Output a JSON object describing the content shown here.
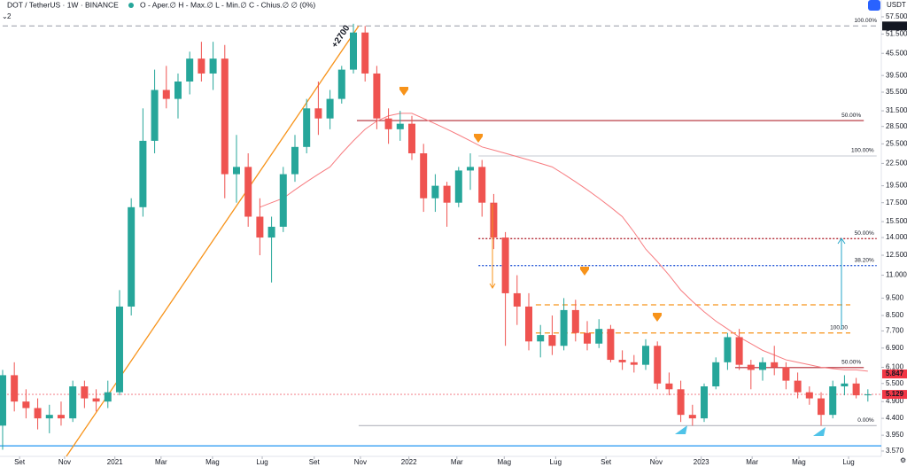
{
  "header": {
    "symbol": "DOT / TetherUS · 1W · BINANCE",
    "ohlc": "O - Aper.∅ H - Max.∅ L - Min.∅ C - Chius.∅ ∅ (0%)",
    "indicators": "2",
    "currency": "USDT"
  },
  "chart_data": {
    "type": "candlestick",
    "log_scale": true,
    "grid": false,
    "up_color": "#26a69a",
    "down_color": "#ef5350",
    "xlim": [
      -0.45,
      150.3
    ],
    "ylim": [
      3.45,
      60.5
    ],
    "xticks": [
      {
        "value": 2.9,
        "label": "Set"
      },
      {
        "value": 10.6,
        "label": "Nov"
      },
      {
        "value": 19.2,
        "label": "2021"
      },
      {
        "value": 27.1,
        "label": "Mar"
      },
      {
        "value": 35.9,
        "label": "Mag"
      },
      {
        "value": 44.4,
        "label": "Lug"
      },
      {
        "value": 53.3,
        "label": "Set"
      },
      {
        "value": 61.2,
        "label": "Nov"
      },
      {
        "value": 69.5,
        "label": "2022"
      },
      {
        "value": 77.7,
        "label": "Mar"
      },
      {
        "value": 85.8,
        "label": "Mag"
      },
      {
        "value": 94.6,
        "label": "Lug"
      },
      {
        "value": 103.2,
        "label": "Set"
      },
      {
        "value": 111.8,
        "label": "Nov"
      },
      {
        "value": 119.5,
        "label": "2023"
      },
      {
        "value": 128.2,
        "label": "Mar"
      },
      {
        "value": 136.2,
        "label": "Mag"
      },
      {
        "value": 144.7,
        "label": "Lug"
      }
    ],
    "yticks": [
      {
        "value": 57.5,
        "label": "57.500"
      },
      {
        "value": 51.5,
        "label": "51.500"
      },
      {
        "value": 45.5,
        "label": "45.500"
      },
      {
        "value": 39.5,
        "label": "39.500"
      },
      {
        "value": 35.5,
        "label": "35.500"
      },
      {
        "value": 31.5,
        "label": "31.500"
      },
      {
        "value": 28.5,
        "label": "28.500"
      },
      {
        "value": 25.5,
        "label": "25.500"
      },
      {
        "value": 22.5,
        "label": "22.500"
      },
      {
        "value": 19.5,
        "label": "19.500"
      },
      {
        "value": 17.5,
        "label": "17.500"
      },
      {
        "value": 15.5,
        "label": "15.500"
      },
      {
        "value": 14,
        "label": "14.000"
      },
      {
        "value": 12.5,
        "label": "12.500"
      },
      {
        "value": 11,
        "label": "11.000"
      },
      {
        "value": 9.5,
        "label": "9.500"
      },
      {
        "value": 8.5,
        "label": "8.500"
      },
      {
        "value": 7.7,
        "label": "7.700"
      },
      {
        "value": 6.9,
        "label": "6.900"
      },
      {
        "value": 6.1,
        "label": "6.100"
      },
      {
        "value": 5.5,
        "label": "5.500"
      },
      {
        "value": 4.9,
        "label": "4.900"
      },
      {
        "value": 4.4,
        "label": "4.400"
      },
      {
        "value": 3.95,
        "label": "3.950"
      },
      {
        "value": 3.57,
        "label": "3.570"
      }
    ],
    "x": [
      0,
      2,
      4,
      6,
      8,
      10,
      12,
      14,
      16,
      18,
      20,
      22,
      24,
      26,
      28,
      30,
      32,
      34,
      36,
      38,
      40,
      42,
      44,
      46,
      48,
      50,
      52,
      54,
      56,
      58,
      60,
      62,
      64,
      66,
      68,
      70,
      72,
      74,
      76,
      78,
      80,
      82,
      84,
      86,
      88,
      90,
      92,
      94,
      96,
      98,
      100,
      102,
      104,
      106,
      108,
      110,
      112,
      114,
      116,
      118,
      120,
      122,
      124,
      126,
      128,
      130,
      132,
      134,
      136,
      138,
      140,
      142,
      144,
      146,
      148
    ],
    "open": [
      4.2,
      5.8,
      4.9,
      4.7,
      4.4,
      4.5,
      4.4,
      5.4,
      5.0,
      4.9,
      5.2,
      9.0,
      17,
      26,
      36,
      34,
      38,
      44,
      40,
      44,
      21,
      22,
      16,
      14,
      15,
      21,
      25,
      32,
      30,
      34,
      41,
      52,
      40,
      30,
      28,
      29,
      24,
      18,
      19.5,
      17.5,
      21.5,
      22,
      17.5,
      14,
      9.8,
      9.0,
      7.2,
      7.5,
      7.0,
      8.8,
      7.6,
      7.1,
      7.8,
      6.4,
      6.3,
      6.2,
      7.0,
      5.5,
      5.3,
      4.5,
      4.4,
      5.4,
      6.3,
      7.4,
      6.2,
      6.0,
      6.3,
      6.1,
      5.6,
      5.2,
      5.0,
      4.5,
      5.4,
      5.5,
      5.1
    ],
    "high": [
      6.0,
      6.3,
      5.3,
      5.0,
      4.8,
      4.9,
      5.6,
      5.6,
      5.3,
      5.6,
      10,
      18,
      32,
      41,
      42,
      40,
      46,
      49,
      49,
      48,
      27,
      24,
      18,
      16,
      22,
      27,
      34,
      38,
      36,
      42,
      55,
      54.219,
      42,
      32,
      31.5,
      30.5,
      25.5,
      21,
      20,
      22,
      24,
      23,
      18.5,
      14.5,
      11,
      9.8,
      8.0,
      8.5,
      9.5,
      9.4,
      8.2,
      8.3,
      8.0,
      6.8,
      6.6,
      7.3,
      7.2,
      5.9,
      5.6,
      4.8,
      5.5,
      6.5,
      7.6,
      7.8,
      6.4,
      6.5,
      7.0,
      6.3,
      5.9,
      5.4,
      5.2,
      5.6,
      5.8,
      5.7,
      5.3
    ],
    "low": [
      3.6,
      4.6,
      4.4,
      4.1,
      4.0,
      4.2,
      4.3,
      4.7,
      4.6,
      4.7,
      5.1,
      8.5,
      16,
      24,
      32,
      30,
      35,
      38,
      36,
      18,
      17.5,
      15,
      12.5,
      10.5,
      14.5,
      20,
      24,
      27,
      28,
      33,
      40,
      38,
      28,
      25.5,
      26,
      23,
      16.5,
      16.5,
      15,
      17,
      19,
      16,
      13,
      7.0,
      8.0,
      6.8,
      6.5,
      6.6,
      6.8,
      7.2,
      6.8,
      6.9,
      6.3,
      6.0,
      5.9,
      6.0,
      5.3,
      5.1,
      4.3,
      4.2,
      4.3,
      5.3,
      6.0,
      6.0,
      5.3,
      5.6,
      5.8,
      5.3,
      5.0,
      4.8,
      4.2,
      4.4,
      5.1,
      5.0,
      4.9
    ],
    "close": [
      5.8,
      4.9,
      4.7,
      4.4,
      4.5,
      4.4,
      5.4,
      5.0,
      4.9,
      5.2,
      9.0,
      17,
      26,
      36,
      34,
      38,
      44,
      40,
      44,
      21,
      22,
      16,
      14,
      15,
      21,
      25,
      32,
      30,
      34,
      41,
      52,
      40,
      30,
      28,
      29,
      24,
      18,
      19.5,
      17.5,
      21.5,
      22,
      17.5,
      14,
      9.8,
      9.0,
      7.2,
      7.5,
      7.0,
      8.8,
      7.6,
      7.1,
      7.8,
      6.4,
      6.3,
      6.2,
      7.0,
      5.5,
      5.3,
      4.5,
      4.4,
      5.4,
      6.3,
      7.4,
      6.2,
      6.0,
      6.3,
      6.1,
      5.6,
      5.2,
      5.0,
      4.5,
      5.4,
      5.5,
      5.1,
      5.129
    ],
    "ma": {
      "color": "#f77c80",
      "values": [
        null,
        null,
        null,
        null,
        null,
        null,
        null,
        null,
        null,
        null,
        null,
        null,
        null,
        null,
        null,
        null,
        null,
        null,
        null,
        null,
        null,
        null,
        17,
        17.5,
        18,
        19,
        20,
        21,
        22,
        24,
        26,
        28,
        29.5,
        30.5,
        31,
        31,
        30,
        29,
        28,
        27,
        26,
        25,
        24.5,
        24,
        23.5,
        23,
        22.5,
        22,
        21,
        20,
        19,
        18,
        17,
        16,
        14.5,
        13,
        12,
        11,
        10,
        9.3,
        8.7,
        8.2,
        7.8,
        7.4,
        7.1,
        6.8,
        6.6,
        6.4,
        6.3,
        6.2,
        6.1,
        6.05,
        6.0,
        6.0,
        5.95
      ]
    },
    "levels": [
      {
        "value": 54.219,
        "x": [
          0,
          150
        ],
        "color": "#b2b5be",
        "style": "dashed",
        "label": "100.00%"
      },
      {
        "value": 29.6,
        "x": [
          60.6,
          147.3
        ],
        "color": "#b22833",
        "style": "solid",
        "label": "50.00%"
      },
      {
        "value": 23.6,
        "x": [
          81.4,
          149.5
        ],
        "color": "#d1d4dc",
        "style": "solid",
        "label": "100.00%"
      },
      {
        "value": 13.9,
        "x": [
          81.4,
          149.5
        ],
        "color": "#b22833",
        "style": "dotted",
        "label": "50.00%"
      },
      {
        "value": 11.7,
        "x": [
          81.4,
          149.5
        ],
        "color": "#2a5bd7",
        "style": "dotted",
        "label": "38.20%"
      },
      {
        "value": 9.1,
        "x": [
          91.2,
          145
        ],
        "color": "#f7931a",
        "style": "dashed"
      },
      {
        "value": 7.6,
        "x": [
          91.2,
          145
        ],
        "color": "#f7931a",
        "style": "dashed",
        "label": "100.00"
      },
      {
        "value": 6.09,
        "x": [
          125.3,
          147.3
        ],
        "color": "#b22833",
        "style": "solid",
        "label": "50.00%"
      },
      {
        "value": 4.2,
        "x": [
          60.9,
          149.5
        ],
        "color": "#b2b5be",
        "style": "solid",
        "label": "0.00%"
      },
      {
        "value": 3.69,
        "x": [
          -0.45,
          150.3
        ],
        "color": "#2196f3",
        "style": "solid"
      },
      {
        "value": 5.129,
        "x": [
          -0.45,
          150.3
        ],
        "color": "#f7a1a8",
        "style": "dotted"
      }
    ],
    "trendline": {
      "label": "+2700",
      "x": [
        10.9,
        60.9
      ],
      "values": [
        3.45,
        54.219
      ],
      "color": "#f7931a"
    },
    "price_tags": [
      {
        "value": 54.219,
        "color": "#131722"
      },
      {
        "value": 5.847,
        "color": "#f23645"
      },
      {
        "value": 5.129,
        "color": "#f23645"
      }
    ]
  }
}
